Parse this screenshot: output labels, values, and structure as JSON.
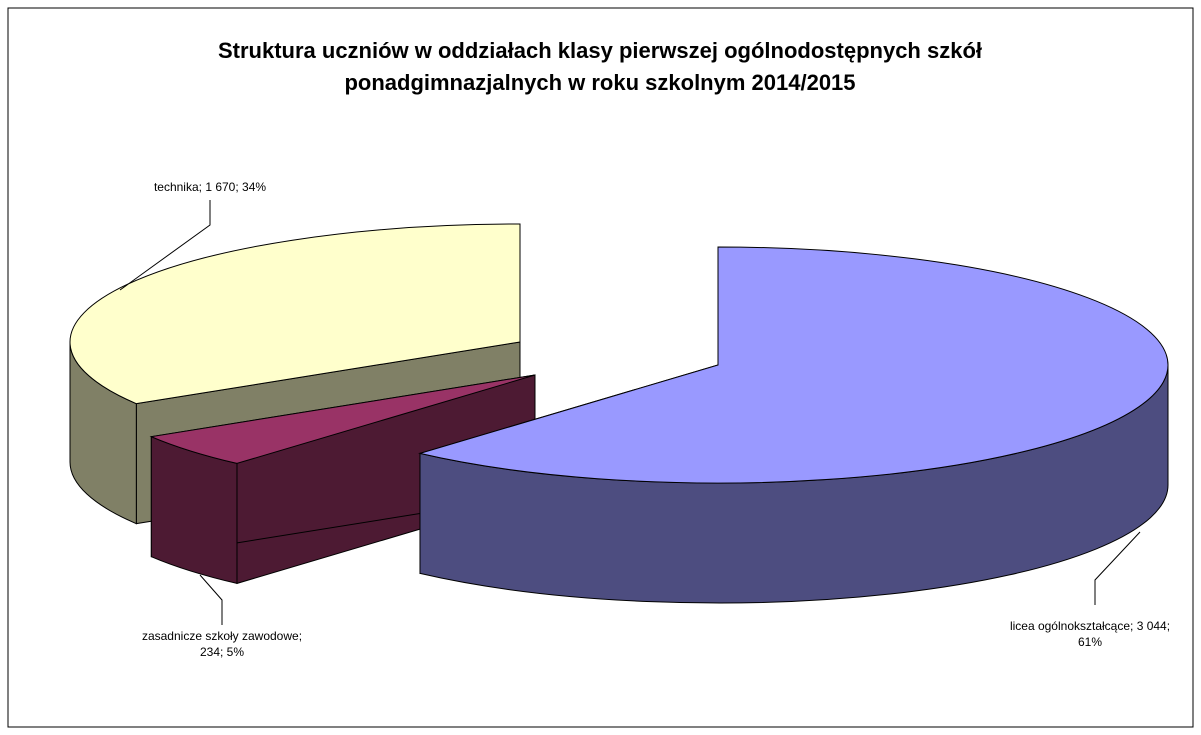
{
  "chart_data": {
    "type": "pie",
    "three_d": true,
    "exploded": true,
    "title": [
      "Struktura uczniów w oddziałach klasy pierwszej ogólnodostępnych szkół",
      "ponadgimnazjalnych w roku szkolnym 2014/2015"
    ],
    "categories": [
      "licea ogólnokształcące",
      "zasadnicze szkoły zawodowe",
      "technika"
    ],
    "values": [
      3044,
      234,
      1670
    ],
    "value_labels": [
      "3 044",
      "234",
      "1 670"
    ],
    "percentages": [
      61,
      5,
      34
    ],
    "percentage_labels": [
      "61%",
      "5%",
      "34%"
    ],
    "label_separator": "; ",
    "colors": [
      "#9999ff",
      "#993366",
      "#ffffcc"
    ]
  }
}
